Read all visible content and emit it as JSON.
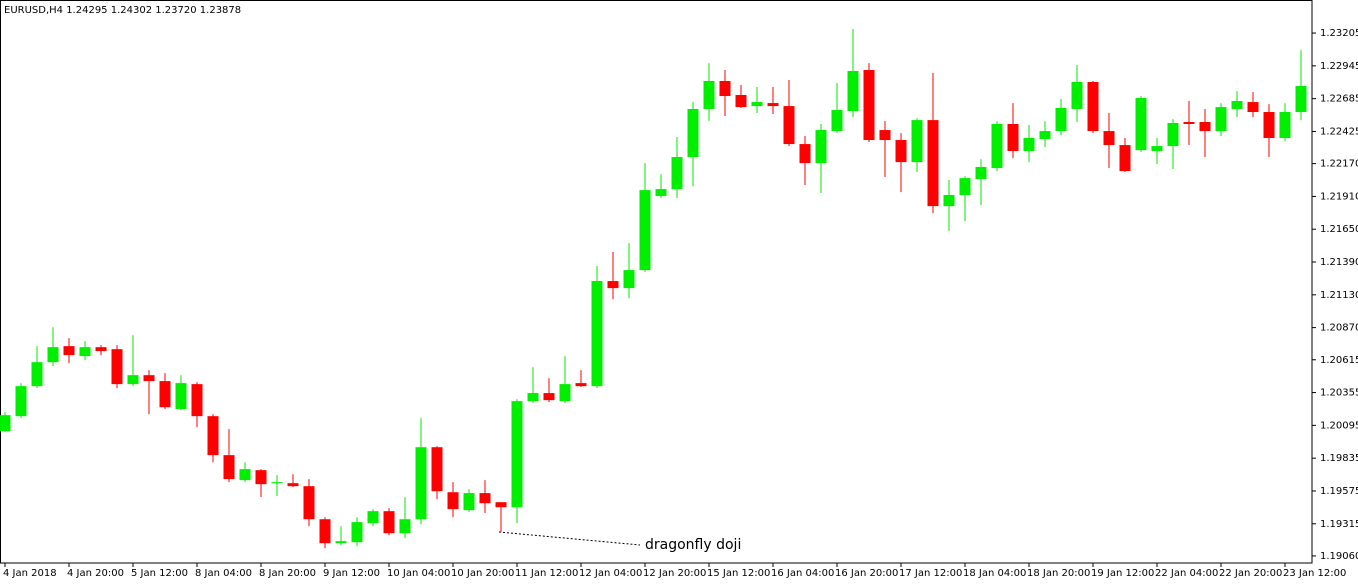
{
  "chart_data": {
    "type": "candlestick",
    "title": "EURUSD,H4  1.24295 1.24302 1.23720 1.23878",
    "annotation": "dragonfly doji",
    "up_color": "#00ee00",
    "down_color": "#ff0000",
    "ylim": [
      1.19004,
      1.23467
    ],
    "yticks": [
      1.23205,
      1.22945,
      1.22685,
      1.22425,
      {
        "value": 1.2217,
        "label": "1.22170"
      },
      {
        "value": 1.2191,
        "label": "1.21910"
      },
      {
        "value": 1.2165,
        "label": "1.21650"
      },
      {
        "value": 1.2139,
        "label": "1.21390"
      },
      {
        "value": 1.2113,
        "label": "1.21130"
      },
      {
        "value": 1.2087,
        "label": "1.20870"
      },
      1.20615,
      1.20355,
      1.20095,
      1.19835,
      1.19575,
      1.19315,
      {
        "value": 1.1906,
        "label": "1.19060"
      }
    ],
    "categories": [
      "4 Jan 2018",
      null,
      null,
      null,
      "4 Jan 20:00",
      null,
      null,
      null,
      "5 Jan 12:00",
      null,
      null,
      null,
      "8 Jan 04:00",
      null,
      null,
      null,
      "8 Jan 20:00",
      null,
      null,
      null,
      "9 Jan 12:00",
      null,
      null,
      null,
      "10 Jan 04:00",
      null,
      null,
      null,
      "10 Jan 20:00",
      null,
      null,
      null,
      "11 Jan 12:00",
      null,
      null,
      null,
      "12 Jan 04:00",
      null,
      null,
      null,
      "12 Jan 20:00",
      null,
      null,
      null,
      "15 Jan 12:00",
      null,
      null,
      null,
      "16 Jan 04:00",
      null,
      null,
      null,
      "16 Jan 20:00",
      null,
      null,
      null,
      "17 Jan 12:00",
      null,
      null,
      null,
      "18 Jan 04:00",
      null,
      null,
      null,
      "18 Jan 20:00",
      null,
      null,
      null,
      "19 Jan 12:00",
      null,
      null,
      null,
      "22 Jan 04:00",
      null,
      null,
      null,
      "22 Jan 20:00",
      null,
      null,
      null,
      "23 Jan 12:00",
      null
    ],
    "open": [
      1.20049,
      1.20168,
      1.20406,
      1.20596,
      1.20723,
      1.20644,
      1.20715,
      1.20699,
      1.20422,
      1.20493,
      1.20446,
      1.20224,
      1.20422,
      1.20168,
      1.19859,
      1.19661,
      1.1974,
      1.19637,
      1.19637,
      1.19613,
      1.19351,
      1.19161,
      1.19169,
      1.1932,
      1.19415,
      1.1924,
      1.19351,
      1.19922,
      1.19565,
      1.19423,
      1.19558,
      1.19486,
      1.19446,
      1.20287,
      1.20351,
      1.20287,
      1.2043,
      1.20406,
      1.21239,
      1.21183,
      1.21326,
      1.21913,
      1.21968,
      1.22222,
      1.22603,
      1.22825,
      1.22714,
      1.22626,
      1.2265,
      1.22626,
      1.22325,
      1.22174,
      1.22428,
      1.22587,
      1.22912,
      1.22436,
      1.22357,
      1.22182,
      1.22515,
      1.21833,
      1.21921,
      1.22048,
      1.22135,
      1.22484,
      1.2227,
      1.22365,
      1.22428,
      1.22603,
      1.22817,
      1.22428,
      1.22317,
      1.22277,
      1.2227,
      1.22309,
      1.225,
      1.225,
      1.22428,
      1.22603,
      1.22658,
      1.22579,
      1.22373,
      1.22579
    ],
    "high": [
      1.202,
      1.2043,
      1.20723,
      1.20874,
      1.20787,
      1.20763,
      1.20731,
      1.20731,
      1.2081,
      1.20533,
      1.20509,
      1.20493,
      1.20438,
      1.20184,
      1.20065,
      1.19803,
      1.19748,
      1.197,
      1.19708,
      1.19669,
      1.19367,
      1.19296,
      1.19367,
      1.19431,
      1.19439,
      1.19526,
      1.20152,
      1.1993,
      1.19645,
      1.19589,
      1.19661,
      1.19486,
      1.20303,
      1.20557,
      1.20469,
      1.20644,
      1.20533,
      1.21358,
      1.21469,
      1.2154,
      1.22174,
      1.22087,
      1.22381,
      1.22658,
      1.22967,
      1.22912,
      1.22793,
      1.22777,
      1.22777,
      1.22833,
      1.22389,
      1.22484,
      1.22809,
      1.23237,
      1.22967,
      1.22507,
      1.22412,
      1.22531,
      1.22888,
      1.2204,
      1.22071,
      1.22206,
      1.22507,
      1.2265,
      1.22476,
      1.22507,
      1.22682,
      1.22952,
      1.22825,
      1.22571,
      1.22373,
      1.22706,
      1.22373,
      1.22523,
      1.22666,
      1.22603,
      1.2265,
      1.22745,
      1.22737,
      1.22642,
      1.2265,
      1.2307
    ],
    "low": [
      1.20041,
      1.20152,
      1.2039,
      1.20565,
      1.20588,
      1.20612,
      1.20652,
      1.2039,
      1.20406,
      1.20184,
      1.20224,
      1.20216,
      1.20081,
      1.19803,
      1.19645,
      1.19645,
      1.19526,
      1.19534,
      1.19605,
      1.19296,
      1.19121,
      1.19145,
      1.19137,
      1.19296,
      1.19224,
      1.19201,
      1.19312,
      1.1951,
      1.19367,
      1.19407,
      1.19399,
      1.19248,
      1.1932,
      1.20271,
      1.20279,
      1.20271,
      1.20398,
      1.2039,
      1.21096,
      1.21104,
      1.2131,
      1.21897,
      1.21897,
      1.21992,
      1.22507,
      1.22547,
      1.22611,
      1.22571,
      1.22563,
      1.22309,
      1.22,
      1.21937,
      1.22412,
      1.22539,
      1.22341,
      1.22063,
      1.21944,
      1.22103,
      1.21778,
      1.21635,
      1.21714,
      1.21841,
      1.22111,
      1.22214,
      1.22182,
      1.22301,
      1.22396,
      1.225,
      1.22412,
      1.22135,
      1.22103,
      1.22262,
      1.22166,
      1.22127,
      1.22317,
      1.22222,
      1.22389,
      1.22539,
      1.22539,
      1.22222,
      1.22349,
      1.22515
    ],
    "close": [
      1.20176,
      1.20406,
      1.20596,
      1.20715,
      1.20652,
      1.20715,
      1.20684,
      1.20422,
      1.20493,
      1.20446,
      1.20239,
      1.2043,
      1.20168,
      1.19859,
      1.19669,
      1.19748,
      1.19629,
      1.19645,
      1.19613,
      1.19351,
      1.19161,
      1.19177,
      1.19328,
      1.19415,
      1.1924,
      1.19351,
      1.19922,
      1.19573,
      1.19431,
      1.19558,
      1.19478,
      1.19446,
      1.20287,
      1.20351,
      1.20295,
      1.20422,
      1.20406,
      1.21239,
      1.21183,
      1.21326,
      1.2196,
      1.21968,
      1.22222,
      1.22603,
      1.22825,
      1.22706,
      1.22618,
      1.22658,
      1.22626,
      1.22325,
      1.22174,
      1.22436,
      1.22595,
      1.22904,
      1.22357,
      1.22357,
      1.22182,
      1.22515,
      1.21833,
      1.21921,
      1.22055,
      1.22143,
      1.22484,
      1.2227,
      1.22373,
      1.22428,
      1.22611,
      1.22817,
      1.22428,
      1.22317,
      1.22111,
      1.2269,
      1.22309,
      1.22492,
      1.22484,
      1.22428,
      1.22618,
      1.22666,
      1.22579,
      1.22373,
      1.22579,
      1.22785
    ]
  }
}
